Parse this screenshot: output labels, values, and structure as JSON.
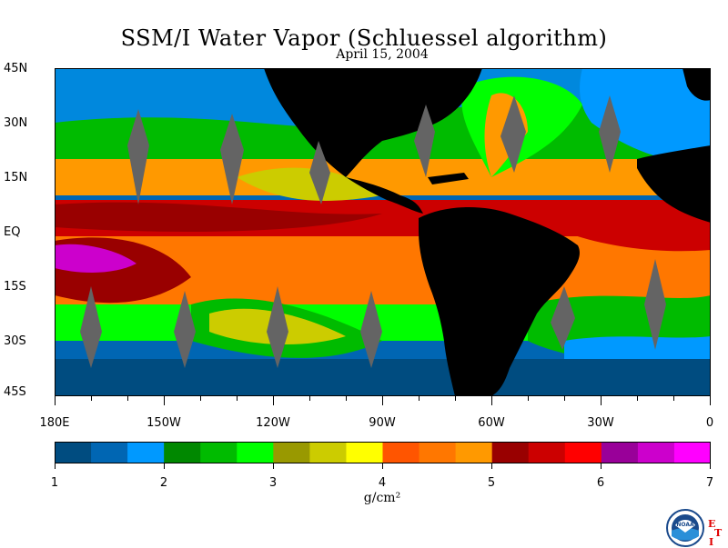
{
  "title": "SSM/I Water Vapor (Schluessel algorithm)",
  "date": "April 15, 2004",
  "latitude_labels": [
    "45N",
    "30N",
    "15N",
    "EQ",
    "15S",
    "30S",
    "45S"
  ],
  "longitude_labels": [
    "180E",
    "150W",
    "120W",
    "90W",
    "60W",
    "30W",
    "0"
  ],
  "colorbar": {
    "tick_labels": [
      "1",
      "2",
      "3",
      "4",
      "5",
      "6",
      "7"
    ],
    "units": "g/cm²",
    "colors": [
      "#004c80",
      "#0066b3",
      "#0099ff",
      "#008800",
      "#00bb00",
      "#00ff00",
      "#999900",
      "#cccc00",
      "#ffff00",
      "#ff5500",
      "#ff7700",
      "#ff9900",
      "#990000",
      "#cc0000",
      "#ff0000",
      "#990099",
      "#cc00cc",
      "#ff00ff"
    ]
  },
  "logo": {
    "name": "NOAA",
    "text": "NOAA",
    "mark_letters": [
      "E",
      "T",
      "I"
    ]
  },
  "colors": {
    "land": "#000000",
    "no_data": "#646464"
  }
}
